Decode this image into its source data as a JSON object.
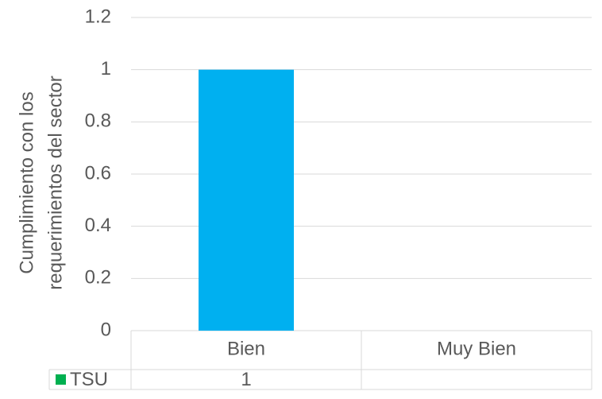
{
  "chart_data": {
    "type": "bar",
    "ylabel": [
      "Cumplimiento con los",
      "requerimientos del sector"
    ],
    "categories": [
      "Bien",
      "Muy Bien"
    ],
    "series": [
      {
        "name": "TSU",
        "color": "#00b0f0",
        "legend_key_color": "#00b050",
        "values": [
          1,
          null
        ]
      }
    ],
    "ylim": [
      0,
      1.2
    ],
    "yticks": [
      0,
      0.2,
      0.4,
      0.6,
      0.8,
      1,
      1.2
    ],
    "grid": true,
    "data_table": true
  }
}
